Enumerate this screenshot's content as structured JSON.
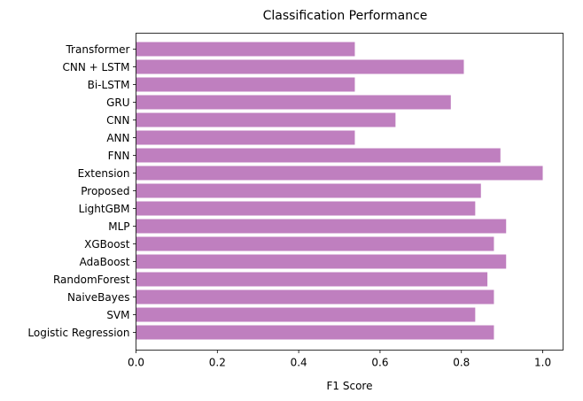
{
  "chart_data": {
    "type": "bar",
    "orientation": "horizontal",
    "title": "Classification Performance",
    "xlabel": "F1 Score",
    "ylabel": "",
    "xlim": [
      0,
      1.05
    ],
    "xticks": [
      "0.0",
      "0.2",
      "0.4",
      "0.6",
      "0.8",
      "1.0"
    ],
    "grid": false,
    "bar_color": "#bf7fbf",
    "categories": [
      "Logistic Regression",
      "SVM",
      "NaiveBayes",
      "RandomForest",
      "AdaBoost",
      "XGBoost",
      "MLP",
      "LightGBM",
      "Proposed",
      "Extension",
      "FNN",
      "ANN",
      "CNN",
      "GRU",
      "Bi-LSTM",
      "CNN + LSTM",
      "Transformer"
    ],
    "values": [
      0.88,
      0.834,
      0.88,
      0.864,
      0.91,
      0.88,
      0.91,
      0.834,
      0.848,
      1.0,
      0.896,
      0.538,
      0.638,
      0.774,
      0.538,
      0.806,
      0.538
    ]
  }
}
